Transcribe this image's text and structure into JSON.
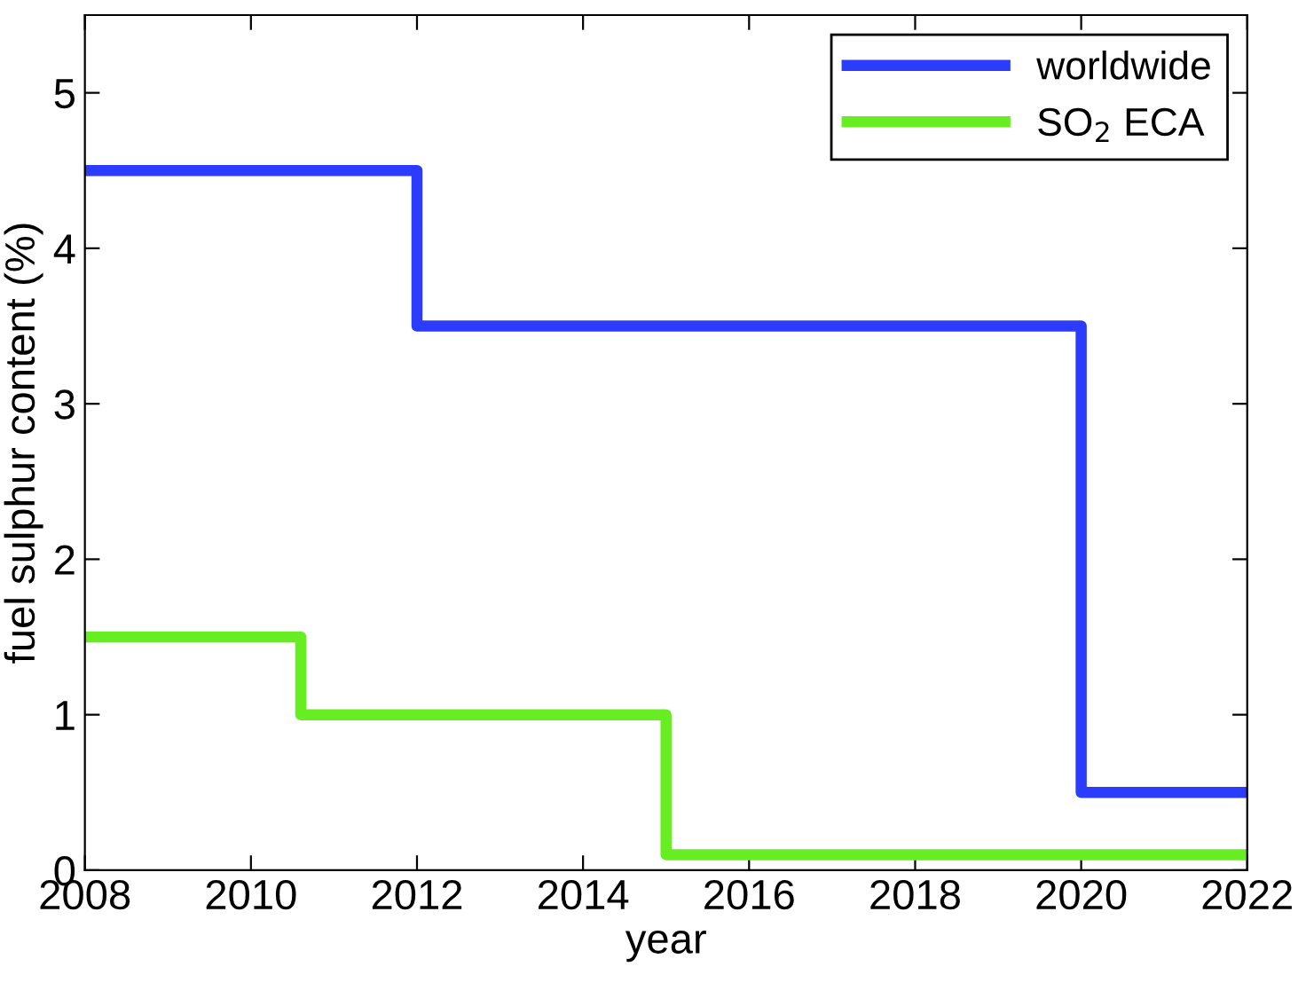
{
  "chart_data": {
    "type": "step",
    "xlabel": "year",
    "ylabel": "fuel sulphur content (%)",
    "xlim": [
      2008,
      2022
    ],
    "xticks": [
      2008,
      2010,
      2012,
      2014,
      2016,
      2018,
      2020,
      2022
    ],
    "ylim": [
      0,
      5.5
    ],
    "yticks": [
      0,
      1,
      2,
      3,
      4,
      5
    ],
    "grid": false,
    "legend": "top right",
    "line_style": "solid",
    "series": [
      {
        "name": "worldwide",
        "color": "#2b3cff",
        "x": [
          2008,
          2012,
          2020,
          2022
        ],
        "values": [
          4.5,
          3.5,
          0.5,
          0.5
        ]
      },
      {
        "name": "SO$_{2}$ ECA",
        "color": "#66ee22",
        "x": [
          2008,
          2010.6,
          2015,
          2022
        ],
        "values": [
          1.5,
          1.0,
          0.1,
          0.1
        ]
      }
    ]
  }
}
